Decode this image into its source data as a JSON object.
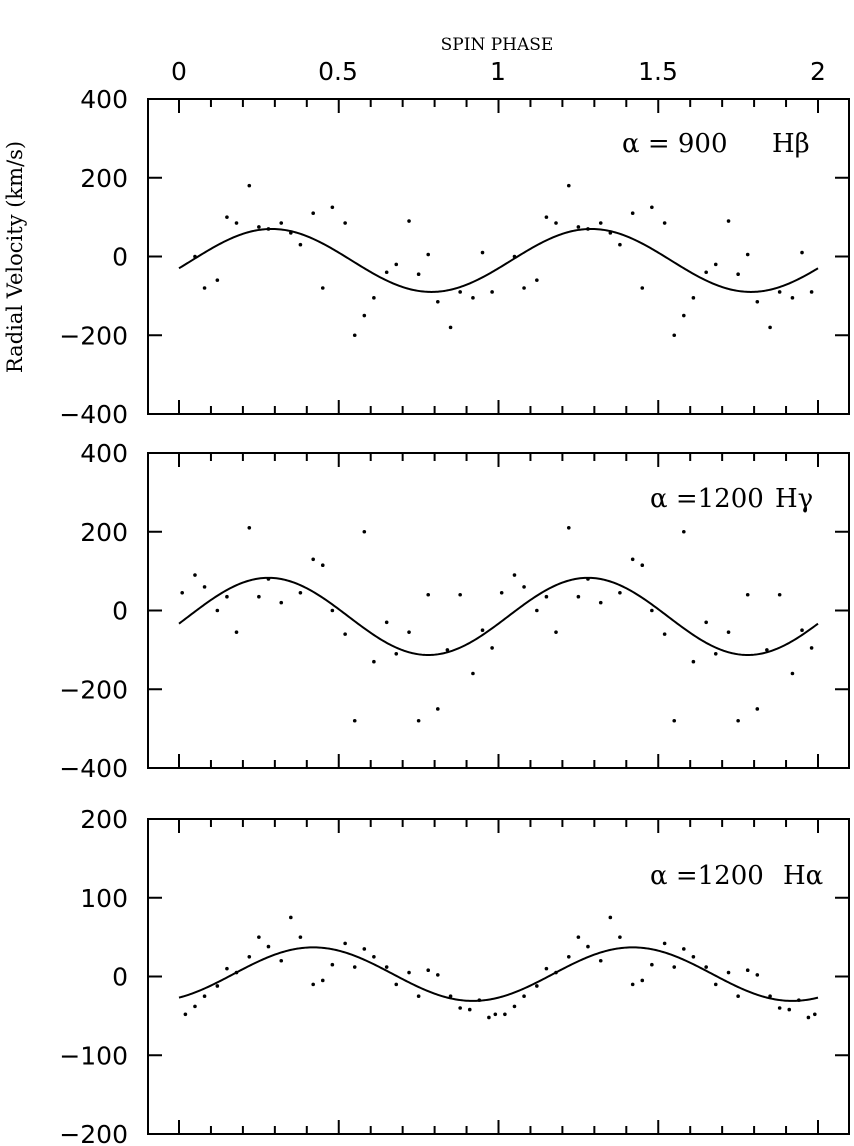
{
  "figure": {
    "top_axis_title": "SPIN PHASE",
    "ylabel": "Radial Velocity (km/s)",
    "top_x_ticks": [
      "0",
      "0.5",
      "1",
      "1.5",
      "2"
    ]
  },
  "chart_data": [
    {
      "type": "scatter",
      "annotation_left": "α = 900",
      "annotation_right": "Hβ",
      "xlim": [
        0,
        2
      ],
      "ylim": [
        -400,
        400
      ],
      "y_ticks": [
        400,
        200,
        0,
        -200,
        -400
      ],
      "y_tick_labels": [
        "400",
        "200",
        "0",
        "−200",
        "−400"
      ],
      "fit": {
        "mean": -10,
        "amplitude": 80,
        "phase_of_max": 0.29
      },
      "points": [
        [
          0.05,
          0
        ],
        [
          0.08,
          -80
        ],
        [
          0.12,
          -60
        ],
        [
          0.15,
          100
        ],
        [
          0.18,
          85
        ],
        [
          0.22,
          180
        ],
        [
          0.25,
          75
        ],
        [
          0.28,
          70
        ],
        [
          0.32,
          85
        ],
        [
          0.35,
          60
        ],
        [
          0.38,
          30
        ],
        [
          0.42,
          110
        ],
        [
          0.45,
          -80
        ],
        [
          0.48,
          125
        ],
        [
          0.52,
          85
        ],
        [
          0.55,
          -200
        ],
        [
          0.58,
          -150
        ],
        [
          0.61,
          -105
        ],
        [
          0.65,
          -40
        ],
        [
          0.68,
          -20
        ],
        [
          0.72,
          90
        ],
        [
          0.75,
          -45
        ],
        [
          0.78,
          5
        ],
        [
          0.81,
          -115
        ],
        [
          0.85,
          -180
        ],
        [
          0.88,
          -90
        ],
        [
          0.92,
          -105
        ],
        [
          0.95,
          10
        ],
        [
          0.98,
          -90
        ]
      ]
    },
    {
      "type": "scatter",
      "annotation_left": "α =1200",
      "annotation_right": "Hγ",
      "xlim": [
        0,
        2
      ],
      "ylim": [
        -400,
        400
      ],
      "y_ticks": [
        400,
        200,
        0,
        -200,
        -400
      ],
      "y_tick_labels": [
        "400",
        "200",
        "0",
        "−200",
        "−400"
      ],
      "fit": {
        "mean": -15,
        "amplitude": 98,
        "phase_of_max": 0.28
      },
      "points": [
        [
          0.01,
          45
        ],
        [
          0.05,
          90
        ],
        [
          0.08,
          60
        ],
        [
          0.12,
          0
        ],
        [
          0.15,
          35
        ],
        [
          0.18,
          -55
        ],
        [
          0.22,
          210
        ],
        [
          0.25,
          35
        ],
        [
          0.28,
          80
        ],
        [
          0.32,
          20
        ],
        [
          0.38,
          45
        ],
        [
          0.42,
          130
        ],
        [
          0.45,
          115
        ],
        [
          0.48,
          0
        ],
        [
          0.52,
          -60
        ],
        [
          0.55,
          -280
        ],
        [
          0.58,
          200
        ],
        [
          0.61,
          -130
        ],
        [
          0.65,
          -30
        ],
        [
          0.68,
          -110
        ],
        [
          0.72,
          -55
        ],
        [
          0.75,
          -280
        ],
        [
          0.78,
          40
        ],
        [
          0.81,
          -250
        ],
        [
          0.84,
          -100
        ],
        [
          0.88,
          40
        ],
        [
          0.92,
          -160
        ],
        [
          0.95,
          -50
        ],
        [
          0.98,
          -95
        ]
      ]
    },
    {
      "type": "scatter",
      "annotation_left": "α =1200",
      "annotation_right": "Hα",
      "xlim": [
        0,
        2
      ],
      "ylim": [
        -200,
        200
      ],
      "y_ticks": [
        200,
        100,
        0,
        -100,
        -200
      ],
      "y_tick_labels": [
        "200",
        "100",
        "0",
        "−100",
        "−200"
      ],
      "fit": {
        "mean": 3,
        "amplitude": 34,
        "phase_of_max": 0.42
      },
      "points": [
        [
          0.02,
          -48
        ],
        [
          0.05,
          -38
        ],
        [
          0.08,
          -25
        ],
        [
          0.12,
          -12
        ],
        [
          0.15,
          10
        ],
        [
          0.18,
          5
        ],
        [
          0.22,
          25
        ],
        [
          0.25,
          50
        ],
        [
          0.28,
          38
        ],
        [
          0.32,
          20
        ],
        [
          0.35,
          75
        ],
        [
          0.38,
          50
        ],
        [
          0.42,
          -10
        ],
        [
          0.45,
          -5
        ],
        [
          0.48,
          15
        ],
        [
          0.52,
          42
        ],
        [
          0.55,
          12
        ],
        [
          0.58,
          35
        ],
        [
          0.61,
          25
        ],
        [
          0.65,
          12
        ],
        [
          0.68,
          -10
        ],
        [
          0.72,
          5
        ],
        [
          0.75,
          -25
        ],
        [
          0.78,
          8
        ],
        [
          0.81,
          2
        ],
        [
          0.85,
          -25
        ],
        [
          0.88,
          -40
        ],
        [
          0.91,
          -42
        ],
        [
          0.94,
          -30
        ],
        [
          0.97,
          -52
        ],
        [
          0.99,
          -48
        ]
      ]
    }
  ]
}
